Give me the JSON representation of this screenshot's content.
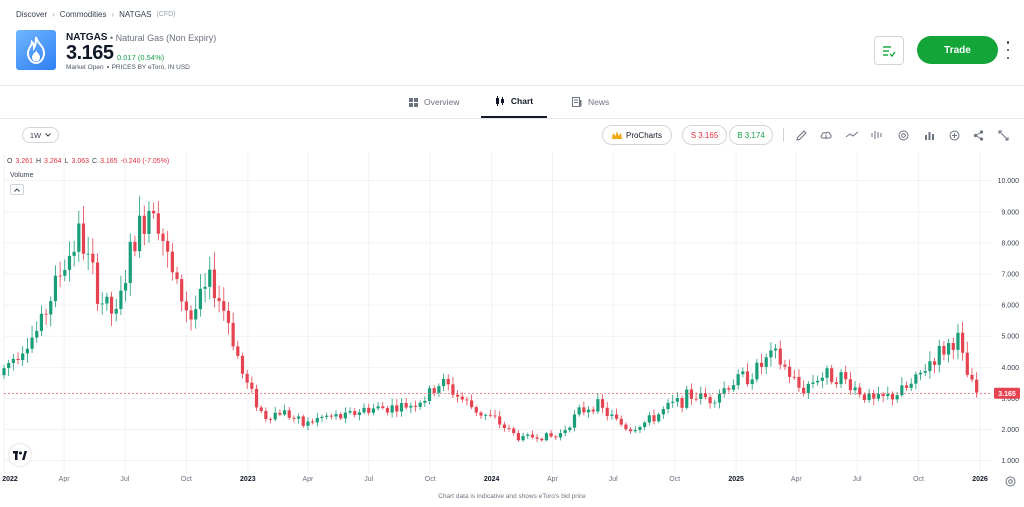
{
  "breadcrumb": {
    "items": [
      "Discover",
      "Commodities",
      "NATGAS"
    ],
    "suffix": "(CFD)"
  },
  "instrument": {
    "ticker": "NATGAS",
    "name": "Natural Gas (Non Expiry)",
    "price": "3.165",
    "change": "0.017 (0.54%)",
    "market_status": "Market Open",
    "prices_note": "PRICES BY eToro, IN USD"
  },
  "actions": {
    "trade_label": "Trade"
  },
  "tabs": [
    {
      "label": "Overview",
      "icon": "grid-icon"
    },
    {
      "label": "Chart",
      "icon": "candles-icon",
      "active": true
    },
    {
      "label": "News",
      "icon": "news-icon"
    }
  ],
  "toolbar": {
    "range": "1W",
    "prochart_label": "ProCharts",
    "sell_label": "S 3.165",
    "buy_label": "B 3.174",
    "tools": [
      "pencil-icon",
      "cloud-icon",
      "trend-line-icon",
      "waveform-icon",
      "gear-circle-icon",
      "bar-chart-icon",
      "plus-circle-icon",
      "share-icon",
      "expand-icon"
    ]
  },
  "ohlc": {
    "o_label": "O",
    "o": "3.261",
    "h_label": "H",
    "h": "3.264",
    "l_label": "L",
    "l": "3.063",
    "c_label": "C",
    "c": "3.165",
    "change": "-0.240 (-7.05%)"
  },
  "volume_label": "Volume",
  "footnote": "Chart data is indicative and shows eToro's bid price",
  "colors": {
    "up": "#1a9e7a",
    "down": "#e5434f",
    "accent": "#13a538",
    "price_line": "#e5434f"
  },
  "chart_data": {
    "type": "candlestick",
    "interval": "1W",
    "ylim": [
      0.7,
      10.6
    ],
    "yticks": [
      "1.000",
      "2.000",
      "3.000",
      "4.000",
      "5.000",
      "6.000",
      "7.000",
      "8.000",
      "9.000",
      "10.000"
    ],
    "ytick_values": [
      1,
      2,
      3,
      4,
      5,
      6,
      7,
      8,
      9,
      10
    ],
    "x_range": [
      "2022-01-01",
      "2026-01-04"
    ],
    "xticks": [
      "2022",
      "Apr",
      "Jul",
      "Oct",
      "2023",
      "Apr",
      "Jul",
      "Oct",
      "2024",
      "Apr",
      "Jul",
      "Oct",
      "2025",
      "Apr",
      "Jul",
      "Oct",
      "2026"
    ],
    "xtick_dates": [
      "2022-01-01",
      "2022-04-01",
      "2022-07-01",
      "2022-10-01",
      "2023-01-01",
      "2023-04-01",
      "2023-07-01",
      "2023-10-01",
      "2024-01-01",
      "2024-04-01",
      "2024-07-01",
      "2024-10-01",
      "2025-01-01",
      "2025-04-01",
      "2025-07-01",
      "2025-10-01",
      "2026-01-01"
    ],
    "last_price_label": "3.165",
    "last_price": 3.165,
    "close_series": [
      {
        "d": "2022-01-01",
        "v": 3.75
      },
      {
        "d": "2022-02-01",
        "v": 4.6
      },
      {
        "d": "2022-03-01",
        "v": 5.2
      },
      {
        "d": "2022-04-01",
        "v": 7.0
      },
      {
        "d": "2022-05-01",
        "v": 8.3
      },
      {
        "d": "2022-06-01",
        "v": 6.2
      },
      {
        "d": "2022-06-25",
        "v": 5.6
      },
      {
        "d": "2022-07-20",
        "v": 8.0
      },
      {
        "d": "2022-08-20",
        "v": 9.5
      },
      {
        "d": "2022-09-15",
        "v": 7.0
      },
      {
        "d": "2022-10-15",
        "v": 5.6
      },
      {
        "d": "2022-11-15",
        "v": 6.8
      },
      {
        "d": "2022-12-10",
        "v": 5.5
      },
      {
        "d": "2023-01-01",
        "v": 3.7
      },
      {
        "d": "2023-02-01",
        "v": 2.4
      },
      {
        "d": "2023-03-01",
        "v": 2.6
      },
      {
        "d": "2023-04-01",
        "v": 2.15
      },
      {
        "d": "2023-05-01",
        "v": 2.4
      },
      {
        "d": "2023-06-01",
        "v": 2.4
      },
      {
        "d": "2023-07-01",
        "v": 2.65
      },
      {
        "d": "2023-08-01",
        "v": 2.7
      },
      {
        "d": "2023-09-01",
        "v": 2.75
      },
      {
        "d": "2023-10-01",
        "v": 3.0
      },
      {
        "d": "2023-10-25",
        "v": 3.55
      },
      {
        "d": "2023-11-20",
        "v": 3.05
      },
      {
        "d": "2023-12-20",
        "v": 2.55
      },
      {
        "d": "2024-01-10",
        "v": 2.35
      },
      {
        "d": "2024-02-01",
        "v": 2.0
      },
      {
        "d": "2024-02-20",
        "v": 1.7
      },
      {
        "d": "2024-03-15",
        "v": 1.8
      },
      {
        "d": "2024-04-15",
        "v": 1.75
      },
      {
        "d": "2024-05-15",
        "v": 2.5
      },
      {
        "d": "2024-06-10",
        "v": 2.85
      },
      {
        "d": "2024-07-05",
        "v": 2.4
      },
      {
        "d": "2024-08-01",
        "v": 2.0
      },
      {
        "d": "2024-09-01",
        "v": 2.3
      },
      {
        "d": "2024-10-01",
        "v": 2.75
      },
      {
        "d": "2024-11-01",
        "v": 3.1
      },
      {
        "d": "2024-12-01",
        "v": 3.0
      },
      {
        "d": "2025-01-01",
        "v": 3.5
      },
      {
        "d": "2025-02-01",
        "v": 3.8
      },
      {
        "d": "2025-03-05",
        "v": 4.4
      },
      {
        "d": "2025-03-25",
        "v": 3.9
      },
      {
        "d": "2025-04-15",
        "v": 3.25
      },
      {
        "d": "2025-05-10",
        "v": 3.7
      },
      {
        "d": "2025-06-10",
        "v": 3.75
      },
      {
        "d": "2025-07-01",
        "v": 3.4
      },
      {
        "d": "2025-08-01",
        "v": 2.9
      },
      {
        "d": "2025-09-01",
        "v": 3.1
      },
      {
        "d": "2025-10-01",
        "v": 3.45
      },
      {
        "d": "2025-10-25",
        "v": 4.2
      },
      {
        "d": "2025-11-25",
        "v": 4.75
      },
      {
        "d": "2025-12-05",
        "v": 5.0
      },
      {
        "d": "2025-12-15",
        "v": 4.0
      },
      {
        "d": "2026-01-01",
        "v": 3.165
      }
    ]
  }
}
